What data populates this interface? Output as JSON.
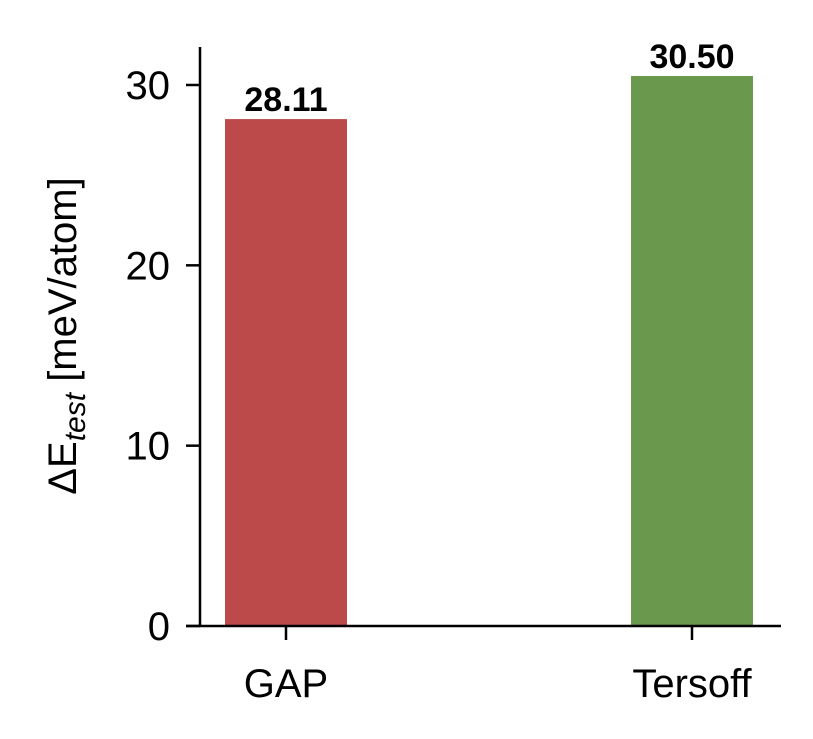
{
  "chart_data": {
    "type": "bar",
    "title": "",
    "xlabel": "",
    "ylabel": "ΔE_test [meV/atom]",
    "ylabel_parts": {
      "prefix": "ΔE",
      "subscript": "test",
      "suffix": " [meV/atom]"
    },
    "categories": [
      "GAP",
      "Tersoff"
    ],
    "values": [
      28.11,
      30.5
    ],
    "value_labels": [
      "28.11",
      "30.50"
    ],
    "colors": [
      "#bc4a4a",
      "#6a994e"
    ],
    "ylim": [
      0,
      32.1
    ],
    "yticks": [
      0,
      10,
      20,
      30
    ],
    "ytick_labels": [
      "0",
      "10",
      "20",
      "30"
    ],
    "grid": false,
    "legend": null,
    "spines": {
      "top": false,
      "right": false,
      "left": true,
      "bottom": true
    }
  }
}
